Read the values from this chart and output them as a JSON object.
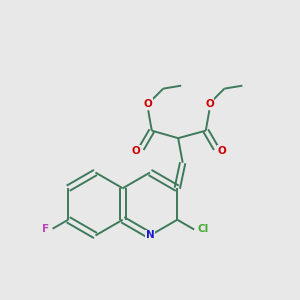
{
  "bg_color": "#e8e8e8",
  "bond_color": "#3d7a5a",
  "o_color": "#cc0000",
  "n_color": "#1a1acc",
  "f_color": "#bb44bb",
  "cl_color": "#44aa33",
  "lw": 1.4,
  "fig_size": [
    3.0,
    3.0
  ],
  "dpi": 100,
  "xlim": [
    0,
    10
  ],
  "ylim": [
    0,
    10
  ]
}
